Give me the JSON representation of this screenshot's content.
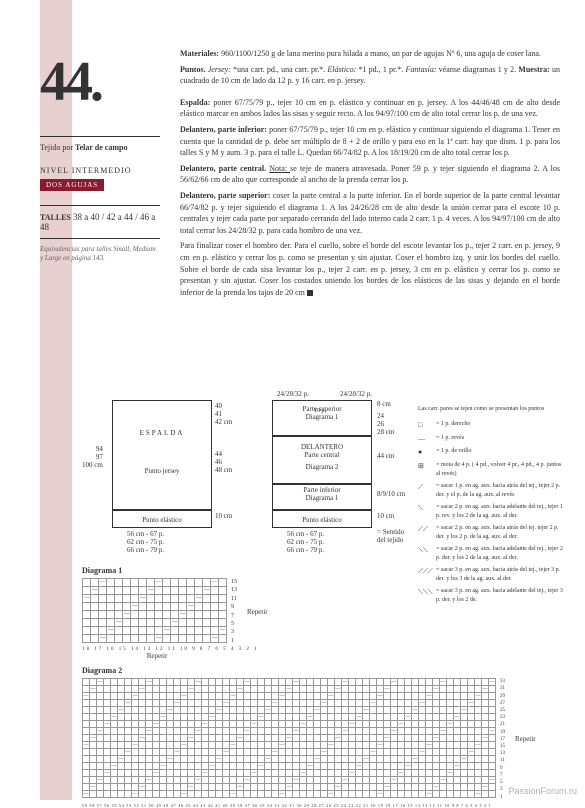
{
  "patternNumber": "44.",
  "tejido": {
    "label": "Tejido por ",
    "value": "Telar de campo"
  },
  "nivel": "NIVEL INTERMEDIO",
  "dosAgujas": "DOS AGUJAS",
  "talles": {
    "label": "TALLES ",
    "sizes": "38 a 40 / 42 a 44 / 46 a 48"
  },
  "equiv": "Equivalencias para talles Small, Medium y Large en página 143.",
  "materiales": {
    "label": "Materiales: ",
    "text": "960/1100/1250 g de lana merino pura hilada a mano, un par de agujas Nº 6, una aguja de coser lana."
  },
  "puntos": {
    "label": "Puntos. ",
    "jersey": "Jersey: ",
    "jerseyText": "*una carr. pd., una carr. pr.*. ",
    "elastico": "Elástico: ",
    "elasticoText": "*1 pd., 1 pr.*. ",
    "fantasia": "Fantasía: ",
    "fantasiaText": "véanse diagramas 1 y 2. ",
    "muestra": "Muestra: ",
    "muestraText": "un cuadrado de 10 cm de lado da 12 p. y 16 carr. en p. jersey."
  },
  "espalda": {
    "label": "Espalda: ",
    "text": "poner 67/75/79 p., tejer 10 cm en p. elástico y continuar en p. jersey. A los 44/46/48 cm de alto desde elástico marcar en ambos lados las sisas y seguir recto. A los 94/97/100 cm de alto total cerrar los p. de una vez."
  },
  "delInf": {
    "label": "Delantero, parte inferior: ",
    "text": "poner 67/75/79 p., tejer 10 cm en p. elástico y continuar siguiendo el diagrama 1. Tener en cuenta que la cantidad de p. debe ser múltiplo de 8 + 2 de orillo y para eso en la 1ª carr. hay que dism. 1 p. para los talles S y M y aum. 3 p. para el talle L. Quedan 66/74/82 p. A los 18/19/20 cm de alto total cerrar los p."
  },
  "delCen": {
    "label": "Delantero, parte central. ",
    "nota": "Nota: ",
    "notaText": "se teje de manera atravesada. Poner 59 p. y tejer siguiendo el diagrama 2. A los 56/62/66 cm de alto que corresponde al ancho de la prenda cerrar los p."
  },
  "delSup": {
    "label": "Delantero, parte superior: ",
    "text": "coser la parte central a la parte inferior. En el borde superior de la parte central levantar 66/74/82 p. y tejer siguiendo el diagrama 1. A los 24/26/28 cm de alto desde la unión cerrar para el escote 10 p. centrales y tejer cada parte por separado cerrando del lado interno cada 2 carr. 1 p. 4 veces. A los 94/97/100 cm de alto total cerrar los 24/28/32 p. para cada hombro de una vez."
  },
  "finalizar": "Para finalizar coser el hombro der. Para el cuello, sobre el borde del escote levantar los p., tejer 2 carr. en p. jersey, 9 cm en p. elástico y cerrar los p. como se presentan y sin ajustar. Coser el hombro izq. y unir los bordes del cuello. Sobre el borde de cada sisa levantar los p., tejer 2 carr. en p. jersey, 3 cm en p. elástico y cerrar los p. como se presentan y sin ajustar. Coser los costados uniendo los bordes de los elásticos de las sisas y dejando en el borde inferior de la prenda los tajos de 20 cm ",
  "schematic": {
    "espalda": {
      "title": "ESPALDA",
      "punto": "Punto jersey",
      "elastico": "Punto elástico",
      "h1": "94\n97\n100 cm",
      "h2": "44\n46\n48 cm",
      "h3": "40\n41\n42 cm",
      "h4": "10 cm",
      "w": "56 cm - 67 p.\n62 cm - 75 p.\n66 cm - 79 p."
    },
    "delantero": {
      "top": "24/28/32 p.",
      "top2": "24/28/32 p.",
      "neck": "10 p.",
      "sup": "Parte superior",
      "d1": "Diagrama 1",
      "cen": "DELANTERO\nParte central",
      "d2": "Diagrama 2",
      "inf": "Parte inferior",
      "infD": "Diagrama 1",
      "el": "Punto elástico",
      "h1": "8 cm",
      "h2": "24\n26\n28 cm",
      "h3": "44 cm",
      "h4": "8/9/10 cm",
      "h5": "10 cm",
      "w": "56 cm - 67 p.\n62 cm - 75 p.\n66 cm - 79 p.",
      "sentido": "= Sentido\ndel tejido"
    }
  },
  "diag1": {
    "title": "Diagrama 1",
    "repetir": "Repetir",
    "rows": "15\n13\n11\n9\n7\n5\n3\n1",
    "cols": "18 17 16 15 14 13 12 11 10 9 8 7 6 5 4 3 2 1"
  },
  "diag2": {
    "title": "Diagrama 2",
    "repetir": "Repetir",
    "rows": "33\n31\n29\n27\n25\n23\n21\n19\n17\n15\n13\n11\n9\n7\n5\n3\n1",
    "cols": "59 58 57 56 55 54 53 52 51 50 49 48 47 46 45 44 43 42 41 40 39 38 37 36 35 34 33 32 31 30 29 28 27 26 25 24 23 22 21 20 19 18 17 16 15 14 13 12 11 10 9 8 7 6 5 4 3 2 1"
  },
  "legend": {
    "title": "Las carr. pares se tejen como se presentan los puntos",
    "items": [
      {
        "sym": "□",
        "txt": "= 1 p. derecho"
      },
      {
        "sym": "—",
        "txt": "= 1 p. revés"
      },
      {
        "sym": "●",
        "txt": "= 1 p. de orillo"
      },
      {
        "sym": "⊞",
        "txt": "= mota de 4 p. ( 4 pd., volver 4 pr., 4 pd., 4 p. juntos al revés)"
      },
      {
        "sym": "⟋",
        "txt": "= sacar 1 p. en ag. aux. hacia atrás del tej., tejer 2 p. der. y el p. de la ag. aux. al revés"
      },
      {
        "sym": "⟍",
        "txt": "= sacar 2 p. en ag. aux. hacia adelante del tej., tejer 1 p. rev. y los 2 de la ag. aux. al der."
      },
      {
        "sym": "⟋⟋",
        "txt": "= sacar 2 p. en ag. aux. hacia atrás del tej. tejer 2 p. der. y los 2 p. de la ag. aux. al der."
      },
      {
        "sym": "⟍⟍",
        "txt": "= sacar 2 p. en ag. aux. hacia adelante del tej., tejer 2 p. der. y los 2 de la ag. aux. al der."
      },
      {
        "sym": "⟋⟋⟋",
        "txt": "= sacar 3 p. en ag. aux. hacia atrás del tej., tejer 3 p. der. y los 3 de la ag. aux. al der."
      },
      {
        "sym": "⟍⟍⟍",
        "txt": "= sacar 3 p. en ag. aux. hacia adelante del tej., tejer 3 p. der. y los 2 de."
      }
    ]
  },
  "watermark": "PassionForum.ru"
}
